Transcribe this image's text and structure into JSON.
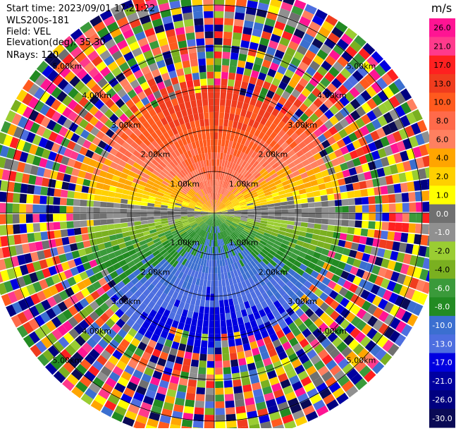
{
  "header": {
    "start_time": "Start time: 2023/09/01 17:21:22",
    "instrument": "WLS200s-181",
    "field": "Field: VEL",
    "elevation": "Elevation(deg): 35.30",
    "nrays": "NRays: 120"
  },
  "chart_data": {
    "type": "ppi",
    "field": "VEL",
    "units": "m/s",
    "range_rings_km": [
      1,
      2,
      3,
      4,
      5
    ],
    "range_ring_labels": [
      "1.00km",
      "2.00km",
      "3.00km",
      "4.00km",
      "5.00km"
    ],
    "max_range_km": 5.5,
    "nrays": 120,
    "colorbar": {
      "unit_label": "m/s",
      "min": -30.0,
      "max": 26.0,
      "tick_labels": [
        "26.0",
        "21.0",
        "17.0",
        "13.0",
        "10.0",
        "8.0",
        "6.0",
        "4.0",
        "2.0",
        "1.0",
        "0.0",
        "-1.0",
        "-2.0",
        "-4.0",
        "-6.0",
        "-8.0",
        "-10.0",
        "-13.0",
        "-17.0",
        "-21.0",
        "-26.0",
        "-30.0"
      ],
      "colors": [
        "#ff1493",
        "#ff3a8c",
        "#ff2020",
        "#f03c1e",
        "#ff5a1e",
        "#ff6a4a",
        "#ff8060",
        "#ffa500",
        "#ffd000",
        "#ffff00",
        "#707070",
        "#909090",
        "#9acd32",
        "#7ab020",
        "#3a9a3a",
        "#228b22",
        "#3b6fd0",
        "#4d6ee0",
        "#0000e0",
        "#0000a0",
        "#000080",
        "#0a0a55"
      ]
    },
    "field_description": {
      "clean_region_max_km": 2.9,
      "transition_band_km": [
        2.9,
        3.4
      ],
      "approach_side": "north-positive",
      "recede_side": "south-negative"
    }
  }
}
